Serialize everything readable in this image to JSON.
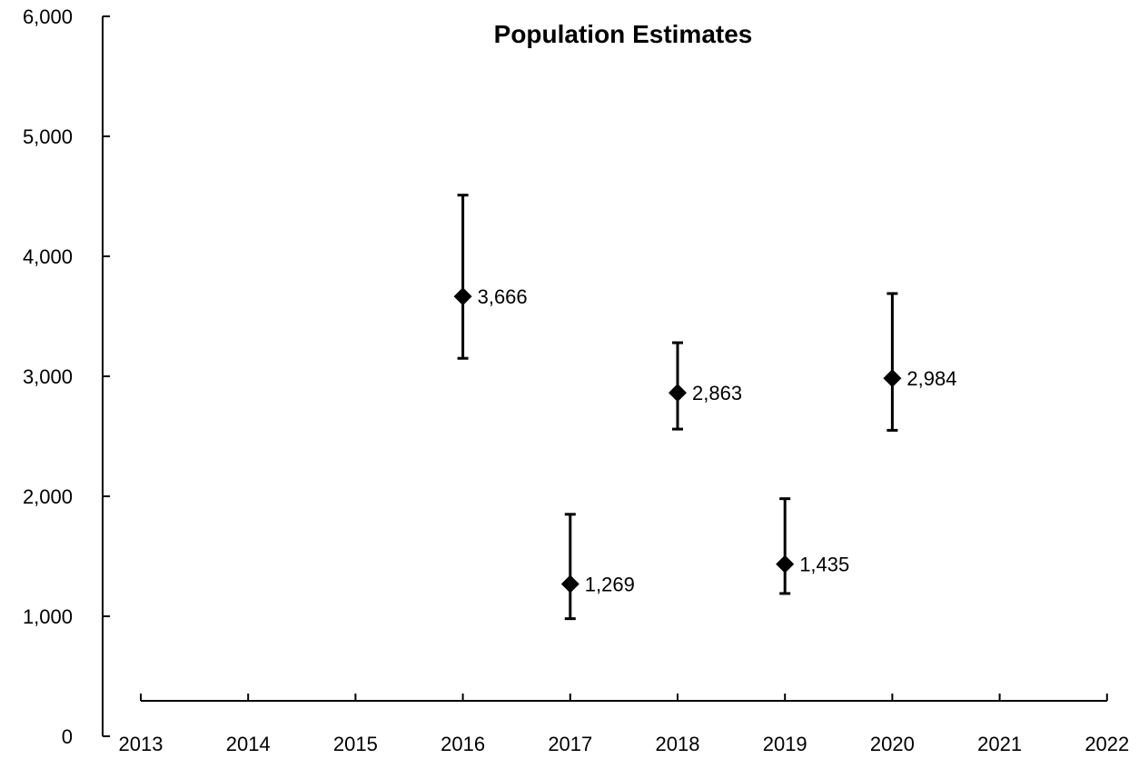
{
  "chart_data": {
    "type": "scatter",
    "title": "Population Estimates",
    "xlabel": "",
    "ylabel": "",
    "x_ticks": [
      "2013",
      "2014",
      "2015",
      "2016",
      "2017",
      "2018",
      "2019",
      "2020",
      "2021",
      "2022"
    ],
    "y_ticks": [
      "0",
      "1,000",
      "2,000",
      "3,000",
      "4,000",
      "5,000",
      "6,000"
    ],
    "xlim": [
      2013,
      2022
    ],
    "ylim": [
      0,
      6000
    ],
    "grid": false,
    "marker": "diamond",
    "color": "#000000",
    "series": [
      {
        "points": [
          {
            "x": 2016,
            "y": 3666,
            "lower": 3150,
            "upper": 4510,
            "label": "3,666"
          },
          {
            "x": 2017,
            "y": 1269,
            "lower": 980,
            "upper": 1850,
            "label": "1,269"
          },
          {
            "x": 2018,
            "y": 2863,
            "lower": 2560,
            "upper": 3280,
            "label": "2,863"
          },
          {
            "x": 2019,
            "y": 1435,
            "lower": 1190,
            "upper": 1980,
            "label": "1,435"
          },
          {
            "x": 2020,
            "y": 2984,
            "lower": 2550,
            "upper": 3690,
            "label": "2,984"
          }
        ]
      }
    ]
  }
}
